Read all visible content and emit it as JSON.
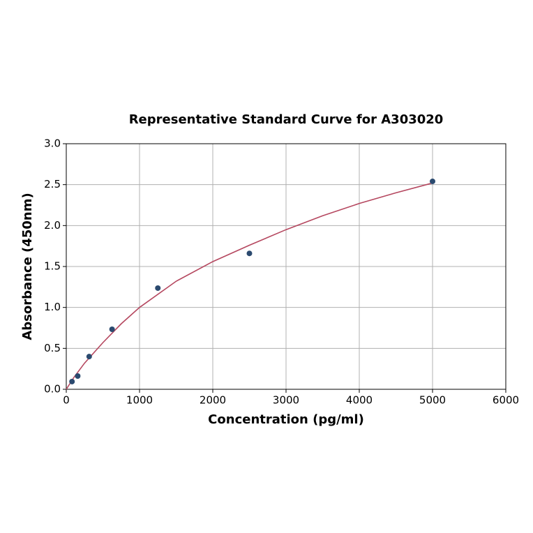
{
  "chart_data": {
    "type": "scatter",
    "title": "Representative Standard Curve for A303020",
    "x_label": "Concentration (pg/ml)",
    "y_label": "Absorbance (450nm)",
    "xlim": [
      0,
      6000
    ],
    "xticks": [
      0,
      1000,
      2000,
      3000,
      4000,
      5000,
      6000
    ],
    "ylim": [
      0,
      3.0
    ],
    "yticks": [
      {
        "value": 0,
        "label": "0.0"
      },
      {
        "value": 0.5,
        "label": "0.5"
      },
      {
        "value": 1.0,
        "label": "1.0"
      },
      {
        "value": 1.5,
        "label": "1.5"
      },
      {
        "value": 2.0,
        "label": "2.0"
      },
      {
        "value": 2.5,
        "label": "2.5"
      },
      {
        "value": 3.0,
        "label": "3.0"
      }
    ],
    "grid": true,
    "series": [
      {
        "type": "scatter",
        "color": "#2b4a6f",
        "x": [
          78.125,
          156.25,
          312.5,
          625,
          1250,
          2500,
          5000
        ],
        "values": [
          0.094,
          0.162,
          0.4,
          0.733,
          1.236,
          1.66,
          2.54
        ]
      },
      {
        "type": "line",
        "color": "#b5475f",
        "x": [
          0,
          100,
          250,
          500,
          750,
          1000,
          1500,
          2000,
          2500,
          3000,
          3500,
          4000,
          4500,
          5000
        ],
        "values": [
          0,
          0.14,
          0.32,
          0.57,
          0.8,
          1.0,
          1.32,
          1.56,
          1.76,
          1.95,
          2.12,
          2.27,
          2.4,
          2.52
        ]
      }
    ]
  }
}
